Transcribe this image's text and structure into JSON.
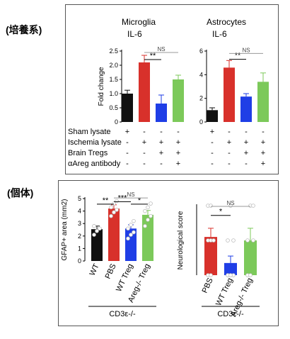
{
  "labels": {
    "culture": "(培養系)",
    "invivo": "(個体)"
  },
  "colors": {
    "black": "#111111",
    "red": "#d8312b",
    "blue": "#1f3ee6",
    "green": "#7cc95a",
    "ns_line": "#999999"
  },
  "chart_data": [
    {
      "type": "bar",
      "title": "Microglia",
      "subtitle": "IL-6",
      "ylabel": "Fold change",
      "ylim": [
        0,
        2.5
      ],
      "yticks": [
        "0",
        "0.5",
        "1.0",
        "1.5",
        "2.0",
        "2.5"
      ],
      "yticks_v": [
        0,
        0.5,
        1.0,
        1.5,
        2.0,
        2.5
      ],
      "values": [
        1.0,
        2.1,
        0.65,
        1.5
      ],
      "errors": [
        0.12,
        0.25,
        0.3,
        0.15
      ],
      "colors": [
        "#111111",
        "#d8312b",
        "#1f3ee6",
        "#7cc95a"
      ],
      "sig": [
        {
          "from": 1,
          "to": 2,
          "label": "**",
          "y": 2.2
        },
        {
          "from": 1,
          "to": 3,
          "label": "NS",
          "y": 2.45
        }
      ]
    },
    {
      "type": "bar",
      "title": "Astrocytes",
      "subtitle": "IL-6",
      "ylabel": "",
      "ylim": [
        0,
        6
      ],
      "yticks": [
        "0",
        "2",
        "4",
        "6"
      ],
      "yticks_v": [
        0,
        2,
        4,
        6
      ],
      "values": [
        1.0,
        4.6,
        2.15,
        3.4
      ],
      "errors": [
        0.2,
        0.6,
        0.25,
        0.75
      ],
      "colors": [
        "#111111",
        "#d8312b",
        "#1f3ee6",
        "#7cc95a"
      ],
      "sig": [
        {
          "from": 1,
          "to": 2,
          "label": "**",
          "y": 5.3
        },
        {
          "from": 1,
          "to": 3,
          "label": "NS",
          "y": 5.8
        }
      ]
    },
    {
      "type": "bar",
      "title": "",
      "ylabel": "GFAP+ area (mm2)",
      "ylim": [
        0,
        5
      ],
      "yticks": [
        "0",
        "1",
        "2",
        "3",
        "4",
        "5"
      ],
      "yticks_v": [
        0,
        1,
        2,
        3,
        4,
        5
      ],
      "categories": [
        "WT",
        "PBS",
        "WT Treg",
        "Areg-/- Treg"
      ],
      "values": [
        2.55,
        4.2,
        2.6,
        3.7
      ],
      "errors": [
        0.25,
        0.3,
        0.3,
        0.35
      ],
      "colors": [
        "#111111",
        "#d8312b",
        "#1f3ee6",
        "#7cc95a"
      ],
      "points": [
        [
          2.1,
          2.4,
          2.6,
          2.8
        ],
        [
          3.6,
          3.9,
          4.1,
          4.3,
          4.6,
          4.8
        ],
        [
          1.8,
          2.1,
          2.3,
          2.6,
          2.9,
          3.2
        ],
        [
          2.8,
          3.3,
          3.6,
          4.0,
          4.3,
          4.6
        ]
      ],
      "sig": [
        {
          "from": 0,
          "to": 1,
          "label": "**",
          "y": 4.55
        },
        {
          "from": 1,
          "to": 2,
          "label": "***",
          "y": 4.75
        },
        {
          "from": 2,
          "to": 3,
          "label": "*",
          "y": 4.55
        },
        {
          "from": 1,
          "to": 3,
          "label": "NS",
          "y": 5.05
        }
      ],
      "group_label": "CD3ε-/-"
    },
    {
      "type": "bar",
      "title": "",
      "ylabel": "Neurological score",
      "ylim": [
        0,
        2
      ],
      "yticks": [],
      "yticks_v": [],
      "categories": [
        "PBS",
        "WT Treg",
        "Areg-/- Treg"
      ],
      "values": [
        1.1,
        0.35,
        1.0
      ],
      "errors": [
        0.25,
        0.2,
        0.35
      ],
      "colors": [
        "#d8312b",
        "#1f3ee6",
        "#7cc95a"
      ],
      "points": [
        [
          0,
          0,
          1,
          1,
          1,
          1,
          2,
          2
        ],
        [
          0,
          0,
          0,
          0,
          0,
          1,
          1,
          2
        ],
        [
          0,
          0,
          1,
          1,
          2,
          2
        ]
      ],
      "sig": [
        {
          "from": 0,
          "to": 1,
          "label": "*",
          "y": 1.72
        },
        {
          "from": 0,
          "to": 2,
          "label": "NS",
          "y": 1.98
        }
      ],
      "group_label": "CD3ε-/-"
    }
  ],
  "treatment_table": {
    "rows": [
      {
        "label": "Sham lysate",
        "marks": [
          "+",
          "-",
          "-",
          "-"
        ]
      },
      {
        "label": "Ischemia lysate",
        "marks": [
          "-",
          "+",
          "+",
          "+"
        ]
      },
      {
        "label": "Brain Tregs",
        "marks": [
          "-",
          "-",
          "+",
          "+"
        ]
      },
      {
        "label": "αAreg antibody",
        "marks": [
          "-",
          "-",
          "-",
          "+"
        ]
      }
    ]
  }
}
